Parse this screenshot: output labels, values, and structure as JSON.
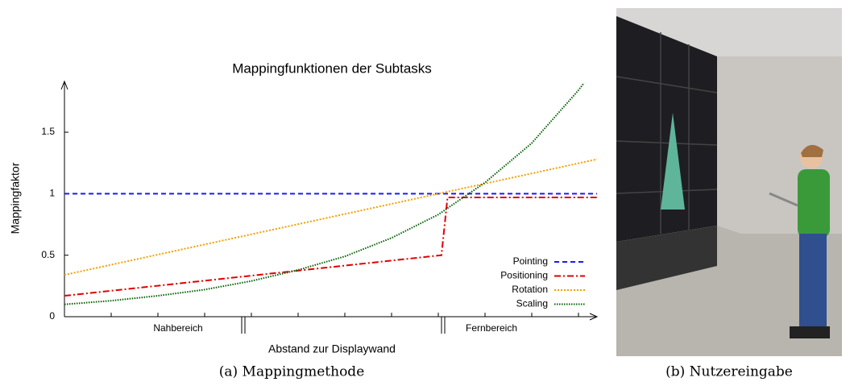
{
  "chart_data": {
    "type": "line",
    "title": "Mappingfunktionen der Subtasks",
    "xlabel": "Abstand zur Displaywand",
    "ylabel": "Mappingfaktor",
    "annotations": [
      "Nahbereich",
      "Fernbereich"
    ],
    "xlim": [
      0,
      11.4
    ],
    "ylim": [
      0,
      1.9
    ],
    "yticks": [
      0,
      0.5,
      1,
      1.5
    ],
    "legend": "lower right",
    "series": [
      {
        "name": "Pointing",
        "color": "#1a1aff",
        "dash": "6,4",
        "x": [
          0,
          11.4
        ],
        "values": [
          1,
          1
        ]
      },
      {
        "name": "Positioning",
        "color": "#e00000",
        "dash": "8,3,2,3",
        "x": [
          0,
          8.07,
          8.2,
          11.4
        ],
        "values": [
          0.17,
          0.5,
          0.97,
          0.97
        ]
      },
      {
        "name": "Rotation",
        "color": "#f5a000",
        "dash": "2,2",
        "x": [
          0,
          11.4
        ],
        "values": [
          0.34,
          1.28
        ]
      },
      {
        "name": "Scaling",
        "color": "#006000",
        "dash": "1.5,1.5",
        "x": [
          0,
          1,
          2,
          3,
          4,
          5,
          6,
          7,
          8,
          9,
          10,
          11,
          11.12
        ],
        "values": [
          0.1,
          0.13,
          0.17,
          0.22,
          0.29,
          0.38,
          0.49,
          0.64,
          0.83,
          1.09,
          1.41,
          1.84,
          1.9
        ]
      }
    ]
  },
  "captions": [
    "(a) Mappingmethode",
    "(b) Nutzereingabe"
  ]
}
